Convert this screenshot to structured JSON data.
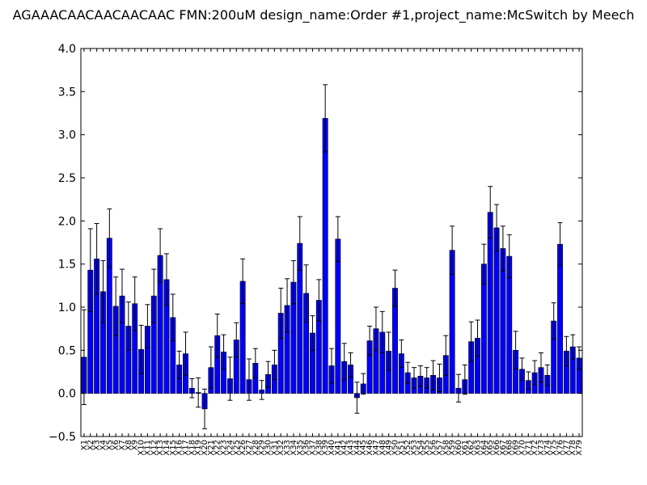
{
  "chart_data": {
    "type": "bar",
    "title": "AGAAACAACAACAACAAC  FMN:200uM  design_name:Order #1,project_name:McSwitch by Meech",
    "xlabel": "",
    "ylabel": "",
    "ylim": [
      -0.5,
      4.0
    ],
    "yticks": [
      "−0.5",
      "0.0",
      "0.5",
      "1.0",
      "1.5",
      "2.0",
      "2.5",
      "3.0",
      "3.5",
      "4.0"
    ],
    "grid": false,
    "bar_color": "#0000ff",
    "categories": [
      "X1",
      "X2",
      "X3",
      "X4",
      "X5",
      "X6",
      "X7",
      "X8",
      "X9",
      "X10",
      "X11",
      "X12",
      "X13",
      "X14",
      "X15",
      "X16",
      "X17",
      "X18",
      "X19",
      "X20",
      "X21",
      "X22",
      "X23",
      "X24",
      "X25",
      "X26",
      "X27",
      "X28",
      "X29",
      "X30",
      "X31",
      "X32",
      "X33",
      "X34",
      "X35",
      "X36",
      "X37",
      "X38",
      "X39",
      "X40",
      "X41",
      "X42",
      "X43",
      "X44",
      "X45",
      "X46",
      "X47",
      "X48",
      "X49",
      "X50",
      "X51",
      "X52",
      "X53",
      "X54",
      "X55",
      "X56",
      "X57",
      "X58",
      "X59",
      "X60",
      "X61",
      "X62",
      "X63",
      "X64",
      "X65",
      "X66",
      "X67",
      "X68",
      "X69",
      "X70",
      "X71",
      "X72",
      "X73",
      "X74",
      "X75",
      "X76",
      "X77",
      "X78",
      "X79"
    ],
    "values": [
      0.42,
      1.43,
      1.56,
      1.18,
      1.8,
      1.01,
      1.13,
      0.78,
      1.04,
      0.51,
      0.78,
      1.13,
      1.6,
      1.32,
      0.88,
      0.33,
      0.46,
      0.06,
      0.01,
      -0.18,
      0.3,
      0.67,
      0.48,
      0.17,
      0.62,
      1.3,
      0.16,
      0.35,
      0.04,
      0.22,
      0.33,
      0.93,
      1.02,
      1.29,
      1.74,
      1.16,
      0.7,
      1.08,
      3.19,
      0.32,
      1.79,
      0.37,
      0.33,
      -0.05,
      0.11,
      0.61,
      0.75,
      0.71,
      0.49,
      1.22,
      0.46,
      0.24,
      0.18,
      0.2,
      0.18,
      0.21,
      0.18,
      0.44,
      1.66,
      0.06,
      0.16,
      0.6,
      0.64,
      1.5,
      2.1,
      1.92,
      1.68,
      1.59,
      0.5,
      0.28,
      0.15,
      0.24,
      0.3,
      0.21,
      0.84,
      1.73,
      0.49,
      0.54,
      0.41
    ],
    "errors": [
      0.55,
      0.48,
      0.41,
      0.36,
      0.34,
      0.34,
      0.31,
      0.28,
      0.31,
      0.28,
      0.25,
      0.31,
      0.31,
      0.3,
      0.27,
      0.16,
      0.25,
      0.11,
      0.17,
      0.23,
      0.24,
      0.25,
      0.2,
      0.25,
      0.2,
      0.26,
      0.24,
      0.17,
      0.11,
      0.15,
      0.17,
      0.29,
      0.31,
      0.25,
      0.31,
      0.33,
      0.2,
      0.24,
      0.39,
      0.2,
      0.26,
      0.21,
      0.14,
      0.18,
      0.12,
      0.17,
      0.25,
      0.24,
      0.22,
      0.21,
      0.16,
      0.12,
      0.12,
      0.12,
      0.12,
      0.17,
      0.16,
      0.23,
      0.28,
      0.16,
      0.17,
      0.23,
      0.21,
      0.23,
      0.3,
      0.27,
      0.26,
      0.25,
      0.22,
      0.13,
      0.1,
      0.14,
      0.17,
      0.12,
      0.21,
      0.25,
      0.17,
      0.14,
      0.13
    ]
  }
}
